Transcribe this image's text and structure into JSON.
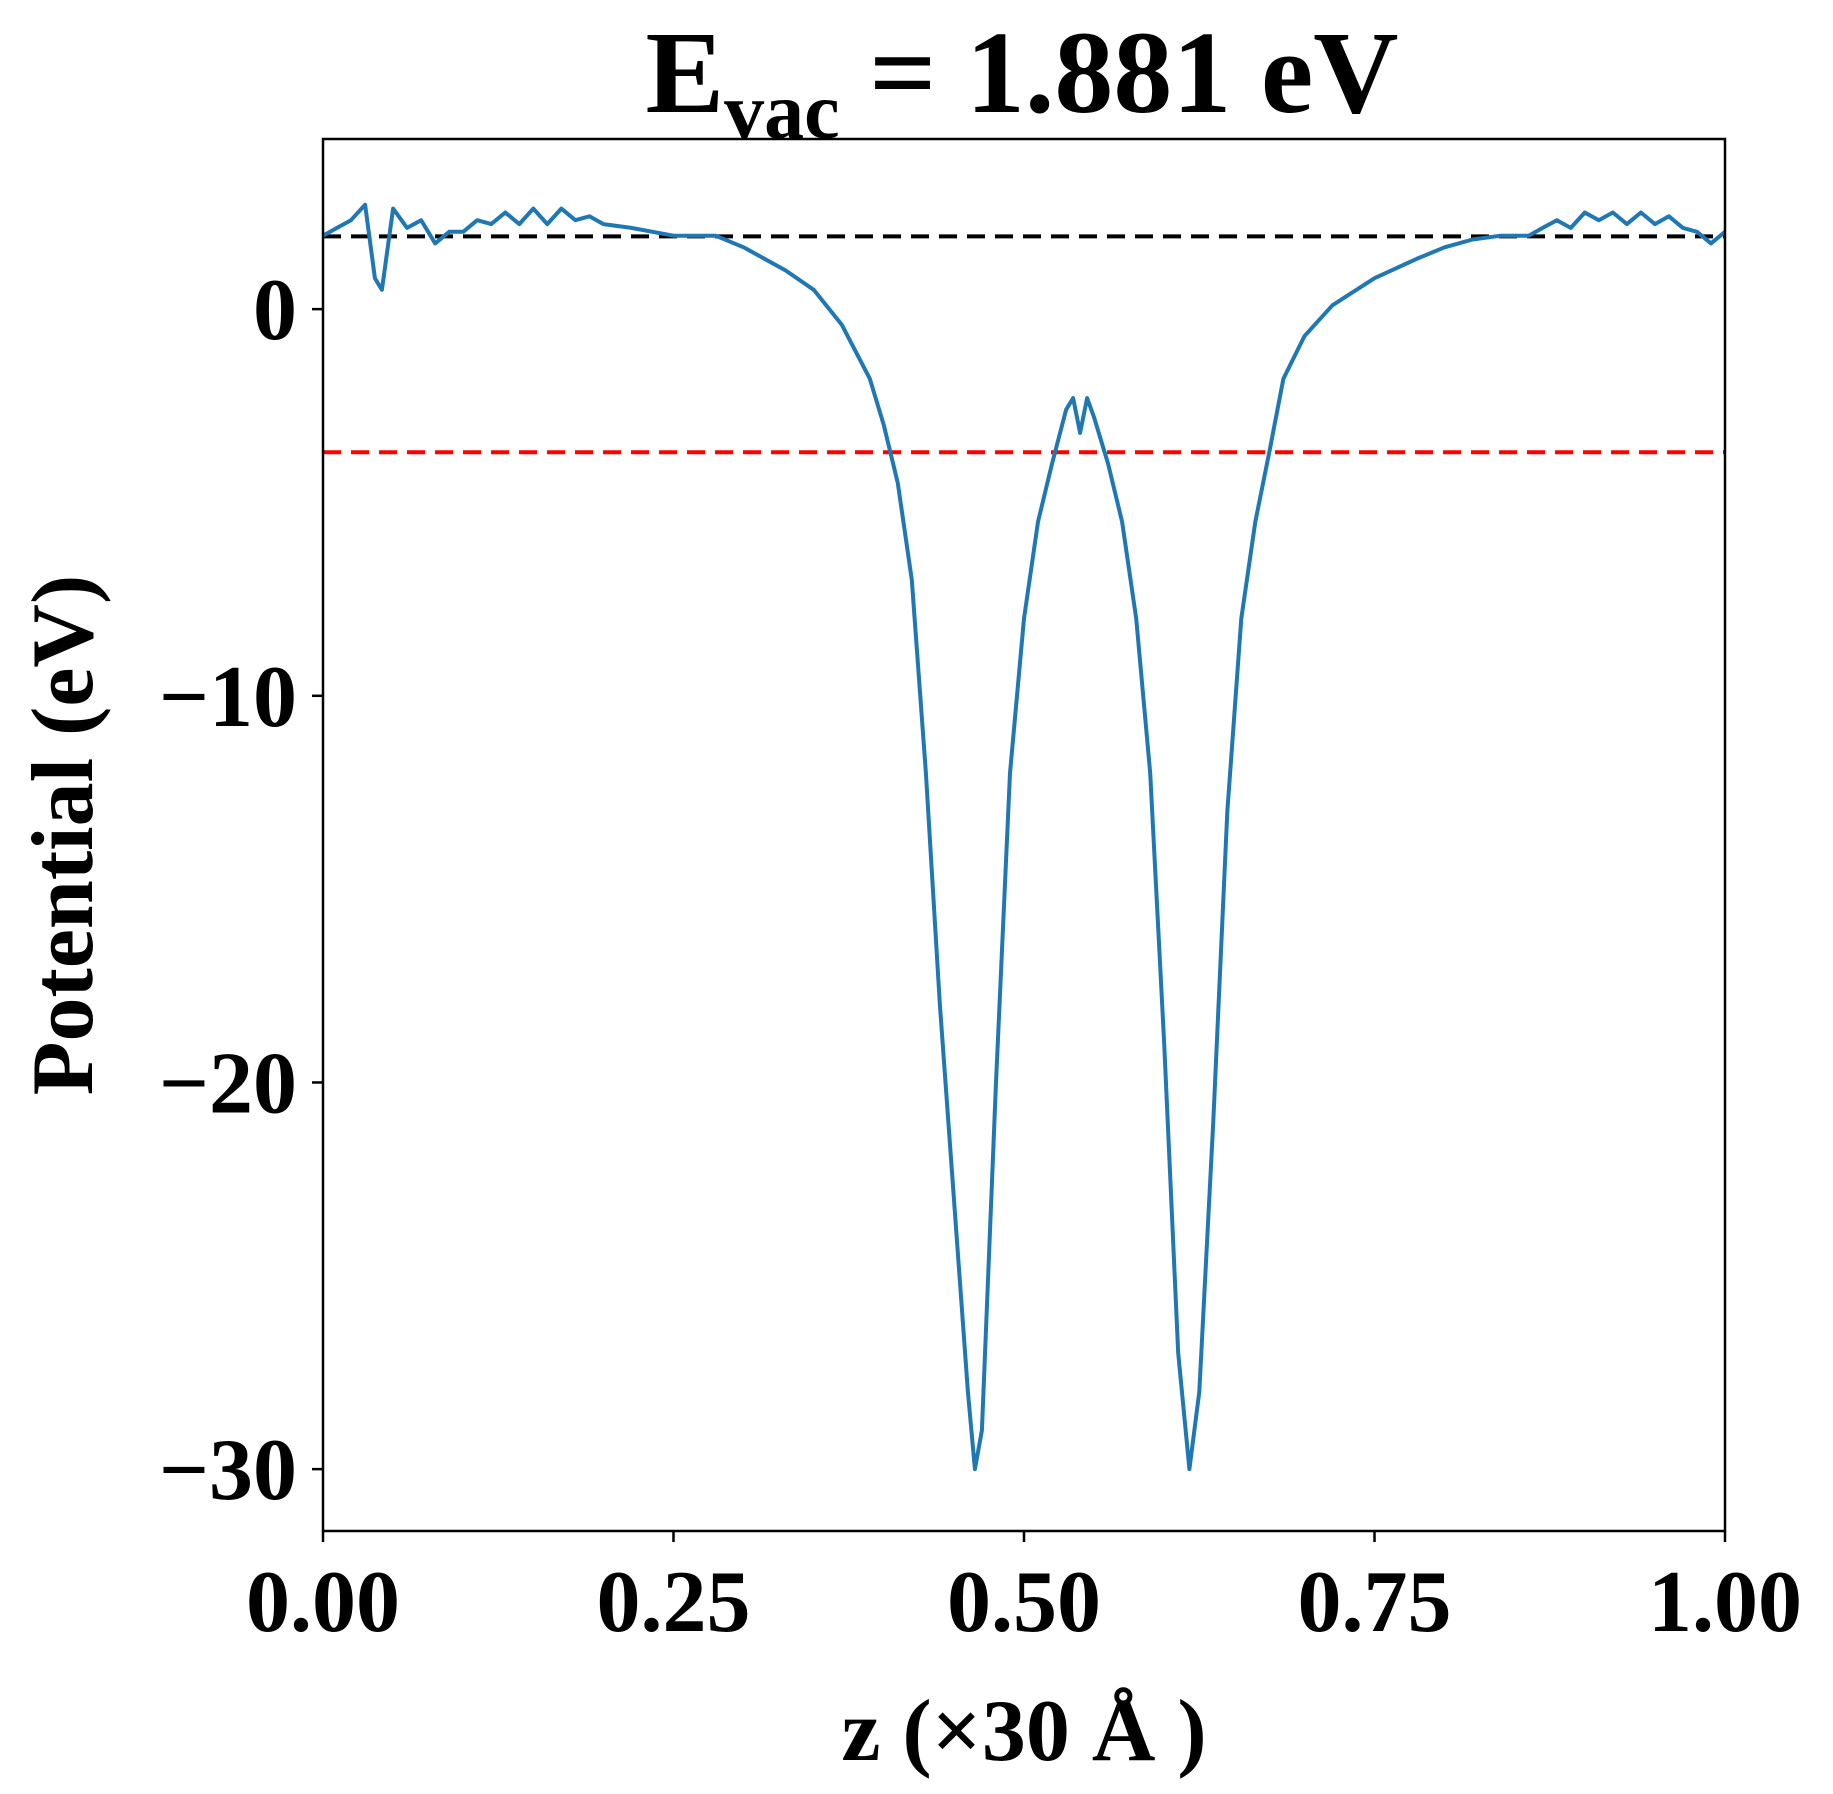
{
  "chart_data": {
    "type": "line",
    "title": {
      "main": "E",
      "sub": "vac",
      "rest": " = 1.881 eV"
    },
    "x_label": "z (×30 Å )",
    "y_label": "Potential (eV)",
    "xlim": [
      0,
      1
    ],
    "ylim": [
      -31.6,
      4.4
    ],
    "xticks": [
      {
        "value": 0,
        "label": "0.00"
      },
      {
        "value": 0.25,
        "label": "0.25"
      },
      {
        "value": 0.5,
        "label": "0.50"
      },
      {
        "value": 0.75,
        "label": "0.75"
      },
      {
        "value": 1,
        "label": "1.00"
      }
    ],
    "yticks": [
      0,
      {
        "value": -10,
        "label": "−10"
      },
      {
        "value": -20,
        "label": "−20"
      },
      {
        "value": -30,
        "label": "−30"
      }
    ],
    "grid": false,
    "hlines": [
      {
        "value": 1.881,
        "color": "#000000"
      },
      {
        "value": -3.7,
        "color": "#ff0000"
      }
    ],
    "x": [
      0,
      0.01,
      0.02,
      0.03,
      0.037,
      0.042,
      0.05,
      0.06,
      0.07,
      0.08,
      0.09,
      0.1,
      0.11,
      0.12,
      0.13,
      0.14,
      0.15,
      0.16,
      0.17,
      0.18,
      0.19,
      0.2,
      0.22,
      0.25,
      0.28,
      0.3,
      0.33,
      0.35,
      0.37,
      0.39,
      0.4,
      0.41,
      0.42,
      0.43,
      0.44,
      0.45,
      0.46,
      0.465,
      0.47,
      0.48,
      0.49,
      0.5,
      0.51,
      0.52,
      0.53,
      0.535,
      0.54,
      0.545,
      0.55,
      0.56,
      0.57,
      0.58,
      0.59,
      0.6,
      0.61,
      0.618,
      0.625,
      0.635,
      0.645,
      0.655,
      0.665,
      0.675,
      0.685,
      0.7,
      0.72,
      0.75,
      0.78,
      0.8,
      0.82,
      0.84,
      0.86,
      0.87,
      0.88,
      0.89,
      0.9,
      0.91,
      0.92,
      0.93,
      0.94,
      0.95,
      0.96,
      0.97,
      0.98,
      0.99,
      1
    ],
    "series": [
      {
        "color": "#1f77b4",
        "values": [
          1.9,
          2.1,
          2.3,
          2.7,
          0.8,
          0.5,
          2.6,
          2.1,
          2.3,
          1.7,
          2.0,
          2.0,
          2.3,
          2.2,
          2.5,
          2.2,
          2.6,
          2.2,
          2.6,
          2.3,
          2.4,
          2.2,
          2.1,
          1.9,
          1.9,
          1.6,
          1.0,
          0.5,
          -0.4,
          -1.8,
          -3.0,
          -4.5,
          -7,
          -12,
          -18,
          -23,
          -28,
          -30,
          -29,
          -20,
          -12,
          -8,
          -5.5,
          -4.0,
          -2.6,
          -2.3,
          -3.2,
          -2.3,
          -2.8,
          -4.0,
          -5.5,
          -8,
          -12,
          -19,
          -27,
          -30,
          -28,
          -21,
          -13,
          -8,
          -5.5,
          -3.7,
          -1.8,
          -0.7,
          0.1,
          0.8,
          1.3,
          1.6,
          1.8,
          1.9,
          1.9,
          2.1,
          2.3,
          2.1,
          2.5,
          2.3,
          2.5,
          2.2,
          2.5,
          2.2,
          2.4,
          2.1,
          2.0,
          1.7,
          2.0
        ]
      }
    ]
  }
}
